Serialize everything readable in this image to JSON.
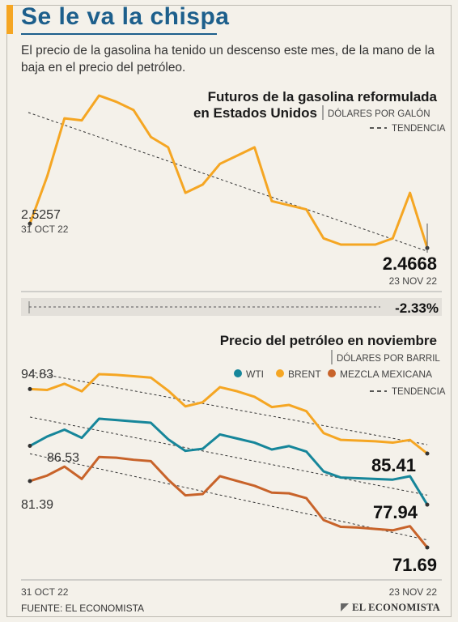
{
  "header": {
    "title": "Se le va la chispa",
    "subtitle": "El precio de la gasolina ha tenido un descenso este mes, de la mano de la baja en el precio del petróleo."
  },
  "chart_data": [
    {
      "type": "line",
      "title": "Futuros de la gasolina reformulada",
      "title_line2": "en Estados Unidos",
      "unit": "DÓLARES POR GALÓN",
      "trend_label": "TENDENCIA",
      "series": [
        {
          "color": "#f5a623",
          "values": [
            2.5257,
            2.64,
            2.78,
            2.775,
            2.835,
            2.82,
            2.8,
            2.735,
            2.71,
            2.6,
            2.62,
            2.67,
            2.69,
            2.71,
            2.58,
            2.57,
            2.56,
            2.49,
            2.475,
            2.475,
            2.475,
            2.49,
            2.6,
            2.4668
          ]
        }
      ],
      "trend": [
        2.8,
        2.4668
      ],
      "start_value": "2.5257",
      "start_date": "31 OCT 22",
      "end_value": "2.4668",
      "end_date": "23 NOV 22",
      "change": "-2.33%"
    },
    {
      "type": "line",
      "title": "Precio del petróleo en noviembre",
      "unit": "DÓLARES POR BARRIL",
      "trend_label": "TENDENCIA",
      "series": [
        {
          "name": "WTI",
          "color": "#16869a",
          "values": [
            86.53,
            87.9,
            88.9,
            87.7,
            90.5,
            90.3,
            90.1,
            89.9,
            87.5,
            85.8,
            86.1,
            88.2,
            87.6,
            87.0,
            86.0,
            86.5,
            85.7,
            82.8,
            81.9,
            81.8,
            81.7,
            81.6,
            82.1,
            77.94
          ]
        },
        {
          "name": "BRENT",
          "color": "#f5a623",
          "values": [
            94.83,
            94.7,
            95.6,
            94.5,
            97.0,
            96.9,
            96.7,
            96.5,
            94.6,
            92.3,
            92.9,
            95.1,
            94.5,
            93.7,
            92.2,
            92.5,
            91.6,
            88.4,
            87.4,
            87.3,
            87.2,
            87.0,
            87.4,
            85.41
          ]
        },
        {
          "name": "MEZCLA MEXICANA",
          "color": "#c8632a",
          "values": [
            81.39,
            82.2,
            83.5,
            81.7,
            84.9,
            84.8,
            84.5,
            84.3,
            81.6,
            79.3,
            79.5,
            82.1,
            81.4,
            80.7,
            79.7,
            79.6,
            78.9,
            75.7,
            74.7,
            74.6,
            74.4,
            74.2,
            74.8,
            71.69
          ]
        }
      ],
      "start_labels": {
        "WTI": "86.53",
        "BRENT": "94.83",
        "MEZCLA MEXICANA": "81.39"
      },
      "end_labels": {
        "WTI": "77.94",
        "BRENT": "85.41",
        "MEZCLA MEXICANA": "71.69"
      },
      "x_start": "31 OCT 22",
      "x_end": "23 NOV 22"
    }
  ],
  "footer": {
    "source": "FUENTE: EL ECONOMISTA",
    "logo": "EL ECONOMISTA"
  }
}
